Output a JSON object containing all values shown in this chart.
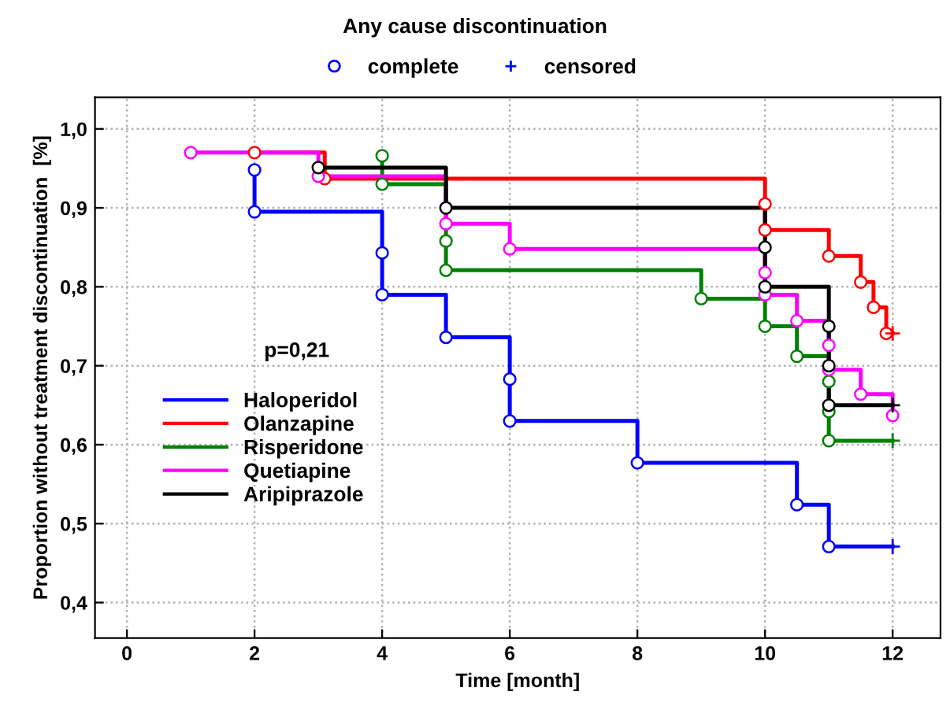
{
  "chart_data": {
    "type": "step",
    "title": "Any cause discontinuation",
    "xlabel": "Time [month]",
    "ylabel": "Proportion without treatment discontinuation  [%]",
    "annotations": [
      "p=0,21"
    ],
    "xlim": [
      -0.5,
      12.75
    ],
    "xticks": [
      0,
      2,
      4,
      6,
      8,
      10,
      12
    ],
    "ylim": [
      0.355,
      1.04
    ],
    "yticks": [
      {
        "value": 0.4,
        "label": "0,4"
      },
      {
        "value": 0.5,
        "label": "0,5"
      },
      {
        "value": 0.6,
        "label": "0,6"
      },
      {
        "value": 0.7,
        "label": "0,7"
      },
      {
        "value": 0.8,
        "label": "0,8"
      },
      {
        "value": 0.9,
        "label": "0,9"
      },
      {
        "value": 1.0,
        "label": "1,0"
      }
    ],
    "grid": true,
    "legend": "left",
    "line_style": "solid",
    "series": [
      {
        "name": "Haloperidol",
        "color": "#0000ff",
        "x": [
          2,
          2,
          4,
          4,
          5,
          6,
          6,
          8,
          10.5,
          11,
          12
        ],
        "values": [
          0.948,
          0.895,
          0.843,
          0.79,
          0.736,
          0.683,
          0.63,
          0.577,
          0.524,
          0.471,
          0.471
        ]
      },
      {
        "name": "Olanzapine",
        "color": "#ff0000",
        "x": [
          2,
          3.1,
          10,
          10,
          11,
          11.5,
          11.7,
          11.9,
          12
        ],
        "values": [
          0.97,
          0.937,
          0.905,
          0.872,
          0.839,
          0.806,
          0.774,
          0.741,
          0.741
        ]
      },
      {
        "name": "Risperidone",
        "color": "#008000",
        "x": [
          4,
          4,
          5,
          5,
          9,
          10,
          10.5,
          11,
          11,
          11,
          12
        ],
        "values": [
          0.966,
          0.93,
          0.858,
          0.821,
          0.785,
          0.75,
          0.712,
          0.68,
          0.642,
          0.605,
          0.605
        ]
      },
      {
        "name": "Quetiapine",
        "color": "#ff00ff",
        "x": [
          1,
          3,
          5,
          6,
          10,
          10,
          10.5,
          11,
          11,
          11.5,
          12
        ],
        "values": [
          0.97,
          0.94,
          0.88,
          0.848,
          0.818,
          0.79,
          0.757,
          0.726,
          0.695,
          0.664,
          0.637
        ]
      },
      {
        "name": "Aripiprazole",
        "color": "#000000",
        "x": [
          3,
          5,
          10,
          10,
          11,
          11,
          11,
          12
        ],
        "values": [
          0.951,
          0.9,
          0.85,
          0.8,
          0.75,
          0.7,
          0.65,
          0.65
        ]
      },
      {
        "name": "complete",
        "type": "scatter",
        "marker": "circle",
        "color": "#0000ff",
        "x": [
          2,
          2,
          4,
          4,
          5,
          6,
          6,
          8,
          10.5,
          11,
          2,
          3.1,
          10,
          10,
          11,
          11.5,
          11.7,
          11.9,
          4,
          4,
          5,
          5,
          9,
          10,
          10.5,
          11,
          11,
          11,
          1,
          3,
          5,
          6,
          10,
          10,
          10.5,
          11,
          11,
          11.5,
          12,
          3,
          5,
          10,
          10,
          11,
          11,
          11
        ],
        "values": [
          0.948,
          0.895,
          0.843,
          0.79,
          0.736,
          0.683,
          0.63,
          0.577,
          0.524,
          0.471,
          0.97,
          0.937,
          0.905,
          0.872,
          0.839,
          0.806,
          0.774,
          0.741,
          0.966,
          0.93,
          0.858,
          0.821,
          0.785,
          0.75,
          0.712,
          0.68,
          0.642,
          0.605,
          0.97,
          0.94,
          0.88,
          0.848,
          0.818,
          0.79,
          0.757,
          0.726,
          0.695,
          0.664,
          0.637,
          0.951,
          0.9,
          0.85,
          0.8,
          0.75,
          0.7,
          0.65
        ],
        "colors": [
          "#0000ff",
          "#0000ff",
          "#0000ff",
          "#0000ff",
          "#0000ff",
          "#0000ff",
          "#0000ff",
          "#0000ff",
          "#0000ff",
          "#0000ff",
          "#ff0000",
          "#ff0000",
          "#ff0000",
          "#ff0000",
          "#ff0000",
          "#ff0000",
          "#ff0000",
          "#ff0000",
          "#008000",
          "#008000",
          "#008000",
          "#008000",
          "#008000",
          "#008000",
          "#008000",
          "#008000",
          "#008000",
          "#008000",
          "#ff00ff",
          "#ff00ff",
          "#ff00ff",
          "#ff00ff",
          "#ff00ff",
          "#ff00ff",
          "#ff00ff",
          "#ff00ff",
          "#ff00ff",
          "#ff00ff",
          "#ff00ff",
          "#000000",
          "#000000",
          "#000000",
          "#000000",
          "#000000",
          "#000000",
          "#000000"
        ]
      },
      {
        "name": "censored",
        "type": "scatter",
        "marker": "cross",
        "color": "#0000ff",
        "x": [
          12,
          12,
          12,
          12
        ],
        "values": [
          0.471,
          0.741,
          0.605,
          0.65
        ],
        "colors": [
          "#0000ff",
          "#ff0000",
          "#008000",
          "#000000"
        ]
      }
    ]
  }
}
